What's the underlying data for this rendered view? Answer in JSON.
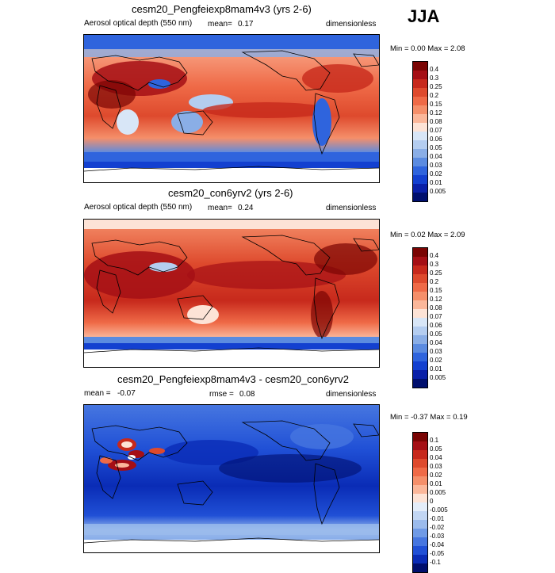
{
  "season": "JJA",
  "panels": [
    {
      "title": "cesm20_Pengfeiexp8mam4v3 (yrs 2-6)",
      "variable": "Aerosol optical depth (550 nm)",
      "mean_label": "mean=",
      "mean_value": "0.17",
      "units": "dimensionless",
      "minmax": "Min =   0.00 Max =   2.08",
      "levels": [
        "0.4",
        "0.3",
        "0.25",
        "0.2",
        "0.15",
        "0.12",
        "0.08",
        "0.07",
        "0.06",
        "0.05",
        "0.04",
        "0.03",
        "0.02",
        "0.01",
        "0.005"
      ]
    },
    {
      "title": "cesm20_con6yrv2 (yrs 2-6)",
      "variable": "Aerosol optical depth (550 nm)",
      "mean_label": "mean=",
      "mean_value": "0.24",
      "units": "dimensionless",
      "minmax": "Min =   0.02 Max =   2.09",
      "levels": [
        "0.4",
        "0.3",
        "0.25",
        "0.2",
        "0.15",
        "0.12",
        "0.08",
        "0.07",
        "0.06",
        "0.05",
        "0.04",
        "0.03",
        "0.02",
        "0.01",
        "0.005"
      ]
    },
    {
      "title": "cesm20_Pengfeiexp8mam4v3 - cesm20_con6yrv2",
      "mean_label": "mean =",
      "mean_value": "-0.07",
      "rmse_label": "rmse =",
      "rmse_value": "0.08",
      "units": "dimensionless",
      "minmax": "Min =  -0.37 Max =   0.19",
      "levels": [
        "0.1",
        "0.05",
        "0.04",
        "0.03",
        "0.02",
        "0.01",
        "0.005",
        "0",
        "-0.005",
        "-0.01",
        "-0.02",
        "-0.03",
        "-0.04",
        "-0.05",
        "-0.1"
      ]
    }
  ],
  "colors": {
    "abs_scale": [
      "#7a0403",
      "#a50f15",
      "#c7291c",
      "#de4a2d",
      "#ef6a47",
      "#f58f6a",
      "#fbb79a",
      "#fde3d6",
      "#d8e6f7",
      "#b4cdf0",
      "#8aaee6",
      "#5b8be0",
      "#2f64dd",
      "#1340d0",
      "#0a20a8",
      "#000f6e"
    ],
    "diff_scale": [
      "#7a0403",
      "#a50f15",
      "#c7291c",
      "#de4a2d",
      "#ef6a47",
      "#f58f6a",
      "#fbb79a",
      "#fde3d6",
      "#e4edf9",
      "#c2d6f3",
      "#9bbbec",
      "#6f9ae6",
      "#4676e0",
      "#2050d6",
      "#0a2cb6",
      "#000f6e"
    ]
  }
}
